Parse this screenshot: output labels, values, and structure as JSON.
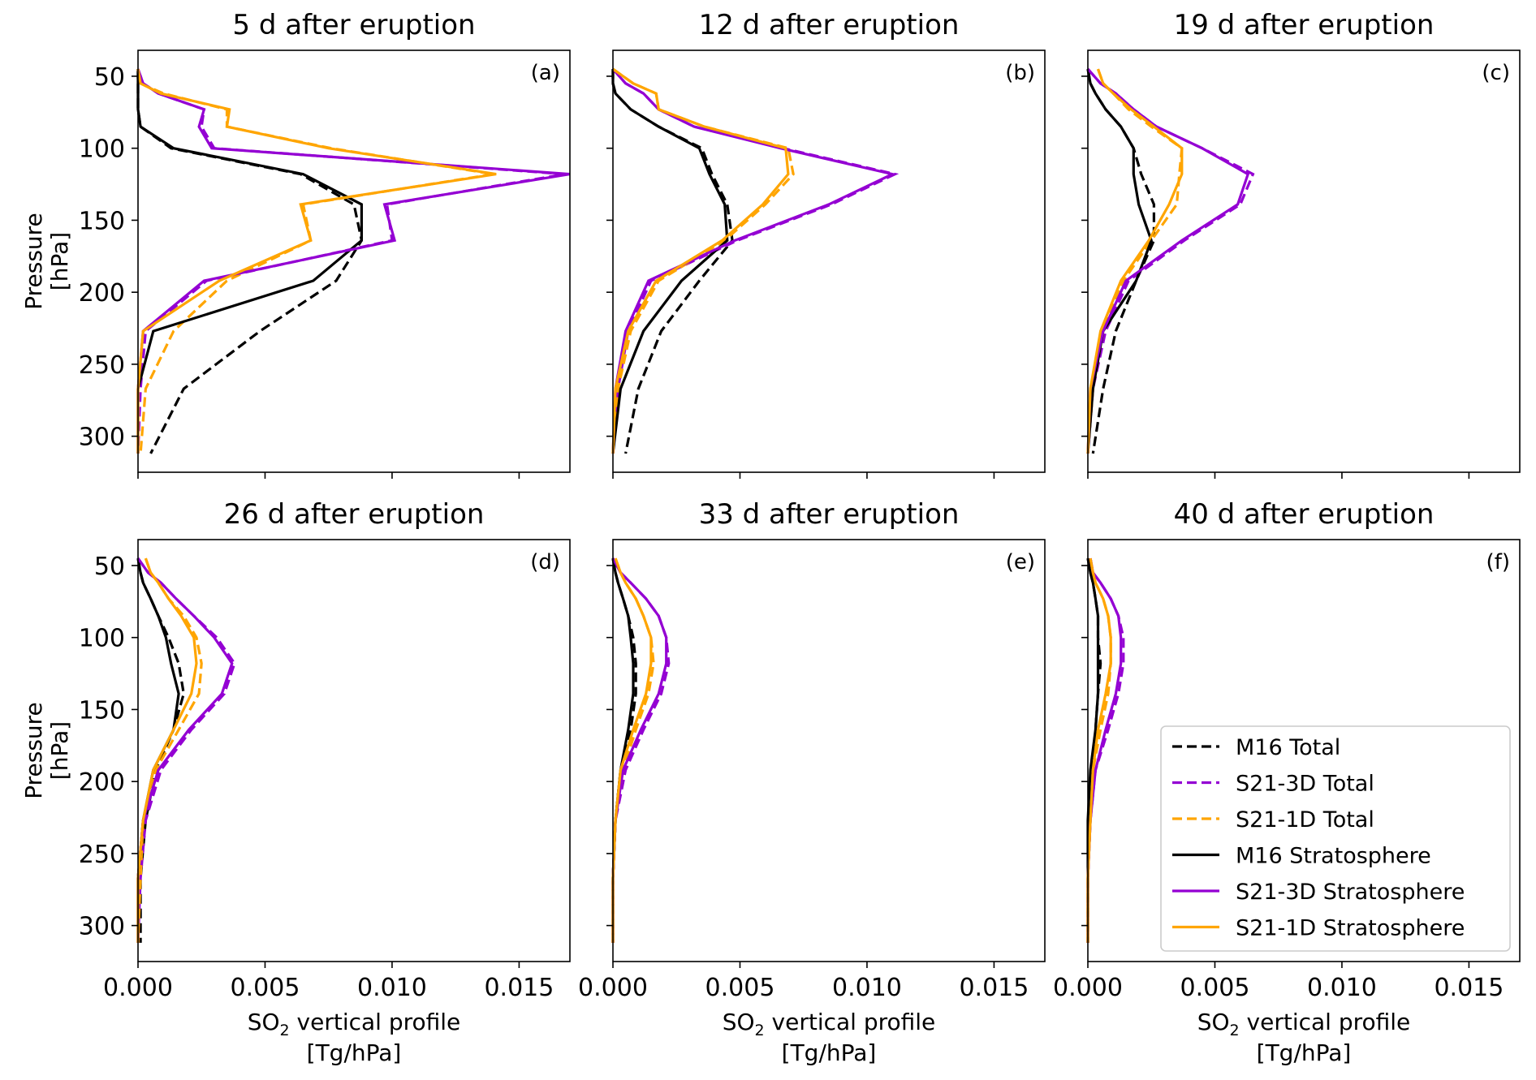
{
  "colors": {
    "M16": "#000000",
    "S21-3D": "#9400d3",
    "S21-1D": "#ffa500"
  },
  "axes_common": {
    "xlim": [
      0,
      0.017
    ],
    "ylim": [
      325,
      32
    ],
    "y_inverted": true,
    "xticks": [
      "0.000",
      "0.005",
      "0.010",
      "0.015"
    ],
    "xtick_values": [
      0,
      0.005,
      0.01,
      0.015
    ],
    "yticks": [
      "50",
      "100",
      "150",
      "200",
      "250",
      "300"
    ],
    "ytick_values": [
      50,
      100,
      150,
      200,
      250,
      300
    ],
    "ylabel_line1": "Pressure",
    "ylabel_line2": "[hPa]",
    "xlabel_pre": "SO",
    "xlabel_sub": "2",
    "xlabel_post": " vertical profile",
    "xlabel_line2": "[Tg/hPa]"
  },
  "legend": {
    "placement": "lower-right of panel (f)",
    "entries": [
      {
        "label": "M16 Total",
        "model": "M16",
        "style": "dashed"
      },
      {
        "label": "S21-3D Total",
        "model": "S21-3D",
        "style": "dashed"
      },
      {
        "label": "S21-1D Total",
        "model": "S21-1D",
        "style": "dashed"
      },
      {
        "label": "M16 Stratosphere",
        "model": "M16",
        "style": "solid"
      },
      {
        "label": "S21-3D Stratosphere",
        "model": "S21-3D",
        "style": "solid"
      },
      {
        "label": "S21-1D Stratosphere",
        "model": "S21-1D",
        "style": "solid"
      }
    ]
  },
  "chart_data": [
    {
      "type": "line",
      "panel": "(a)",
      "title": "5 d  after eruption",
      "pressure": [
        45,
        55,
        62,
        73,
        85,
        100,
        118,
        139,
        164,
        192,
        227,
        267,
        312
      ],
      "series": [
        {
          "model": "M16",
          "style": "dashed",
          "values": [
            0,
            0,
            0,
            0,
            0.0001,
            0.0013,
            0.0064,
            0.0085,
            0.0088,
            0.0078,
            0.0048,
            0.0018,
            0.0005
          ]
        },
        {
          "model": "S21-3D",
          "style": "dashed",
          "values": [
            0,
            0.0002,
            0.0008,
            0.0026,
            0.0025,
            0.003,
            0.0168,
            0.0098,
            0.01,
            0.0027,
            0.0003,
            0.0001,
            0
          ]
        },
        {
          "model": "S21-1D",
          "style": "dashed",
          "values": [
            0,
            0.0001,
            0.001,
            0.0035,
            0.0035,
            0.0076,
            0.014,
            0.0065,
            0.0068,
            0.0035,
            0.0014,
            0.0003,
            0.0001
          ]
        },
        {
          "model": "M16",
          "style": "solid",
          "values": [
            0,
            0,
            0,
            0,
            0.0001,
            0.0014,
            0.0065,
            0.0088,
            0.0088,
            0.0069,
            0.0006,
            0,
            0
          ]
        },
        {
          "model": "S21-3D",
          "style": "solid",
          "values": [
            0,
            0.0002,
            0.0008,
            0.0026,
            0.0024,
            0.0029,
            0.017,
            0.0097,
            0.0101,
            0.0026,
            0.0002,
            0,
            0
          ]
        },
        {
          "model": "S21-1D",
          "style": "solid",
          "values": [
            0,
            0.0001,
            0.0009,
            0.0036,
            0.0035,
            0.0075,
            0.0141,
            0.0064,
            0.0068,
            0.0032,
            0.0002,
            0,
            0
          ]
        }
      ]
    },
    {
      "type": "line",
      "panel": "(b)",
      "title": "12 d  after eruption",
      "pressure": [
        45,
        55,
        62,
        73,
        85,
        100,
        118,
        139,
        164,
        192,
        227,
        267,
        312
      ],
      "series": [
        {
          "model": "M16",
          "style": "dashed",
          "values": [
            0,
            0,
            0.0001,
            0.0007,
            0.0018,
            0.0035,
            0.0039,
            0.0045,
            0.0047,
            0.0034,
            0.0019,
            0.001,
            0.0005
          ]
        },
        {
          "model": "S21-3D",
          "style": "dashed",
          "values": [
            0,
            0.0005,
            0.0012,
            0.0018,
            0.0032,
            0.0067,
            0.0111,
            0.0086,
            0.0049,
            0.0015,
            0.0006,
            0.0002,
            0
          ]
        },
        {
          "model": "S21-1D",
          "style": "dashed",
          "values": [
            0,
            0.0008,
            0.0017,
            0.0018,
            0.0036,
            0.0069,
            0.0071,
            0.006,
            0.0044,
            0.0018,
            0.0007,
            0.0002,
            0
          ]
        },
        {
          "model": "M16",
          "style": "solid",
          "values": [
            0,
            0,
            0.0001,
            0.0007,
            0.0018,
            0.0034,
            0.0038,
            0.0044,
            0.0045,
            0.0027,
            0.0012,
            0.0003,
            0
          ]
        },
        {
          "model": "S21-3D",
          "style": "solid",
          "values": [
            0,
            0.0005,
            0.0012,
            0.0018,
            0.0032,
            0.0066,
            0.011,
            0.0085,
            0.0048,
            0.0014,
            0.0005,
            0.0001,
            0
          ]
        },
        {
          "model": "S21-1D",
          "style": "solid",
          "values": [
            0,
            0.0008,
            0.0017,
            0.0018,
            0.0036,
            0.0068,
            0.0069,
            0.0059,
            0.0043,
            0.0017,
            0.0006,
            0.0001,
            0
          ]
        }
      ]
    },
    {
      "type": "line",
      "panel": "(c)",
      "title": "19 d  after eruption",
      "pressure": [
        45,
        55,
        62,
        73,
        85,
        100,
        118,
        139,
        164,
        192,
        227,
        267,
        312
      ],
      "series": [
        {
          "model": "M16",
          "style": "dashed",
          "values": [
            0,
            0.0001,
            0.0003,
            0.0007,
            0.0013,
            0.0018,
            0.0021,
            0.0026,
            0.0026,
            0.0019,
            0.0011,
            0.0006,
            0.0002
          ]
        },
        {
          "model": "S21-3D",
          "style": "dashed",
          "values": [
            0,
            0.0005,
            0.0011,
            0.0018,
            0.0027,
            0.0045,
            0.0065,
            0.006,
            0.0038,
            0.0016,
            0.0007,
            0.0002,
            0
          ]
        },
        {
          "model": "S21-1D",
          "style": "dashed",
          "values": [
            0.0004,
            0.0006,
            0.001,
            0.0016,
            0.0025,
            0.0037,
            0.0036,
            0.0035,
            0.0025,
            0.0014,
            0.0006,
            0.0002,
            0
          ]
        },
        {
          "model": "M16",
          "style": "solid",
          "values": [
            0,
            0.0001,
            0.0003,
            0.0007,
            0.0013,
            0.0018,
            0.0018,
            0.002,
            0.0025,
            0.0019,
            0.0006,
            0.0002,
            0
          ]
        },
        {
          "model": "S21-3D",
          "style": "solid",
          "values": [
            0,
            0.0005,
            0.0011,
            0.0018,
            0.0027,
            0.0045,
            0.0063,
            0.0059,
            0.0037,
            0.0015,
            0.0006,
            0.0001,
            0
          ]
        },
        {
          "model": "S21-1D",
          "style": "solid",
          "values": [
            0.0004,
            0.0006,
            0.001,
            0.0017,
            0.0026,
            0.0037,
            0.0037,
            0.0032,
            0.0024,
            0.0013,
            0.0005,
            0.0001,
            0
          ]
        }
      ]
    },
    {
      "type": "line",
      "panel": "(d)",
      "title": "26 d  after eruption",
      "pressure": [
        45,
        55,
        62,
        73,
        85,
        100,
        118,
        139,
        164,
        192,
        227,
        267,
        312
      ],
      "series": [
        {
          "model": "M16",
          "style": "dashed",
          "values": [
            0,
            0.0001,
            0.0002,
            0.0005,
            0.0008,
            0.0012,
            0.0016,
            0.0018,
            0.0014,
            0.0007,
            0.0003,
            0.0001,
            0.0001
          ]
        },
        {
          "model": "S21-3D",
          "style": "dashed",
          "values": [
            0,
            0.0004,
            0.0009,
            0.0015,
            0.0022,
            0.0031,
            0.0038,
            0.0034,
            0.0021,
            0.0009,
            0.0003,
            0.0001,
            0
          ]
        },
        {
          "model": "S21-1D",
          "style": "dashed",
          "values": [
            0.0003,
            0.0005,
            0.0008,
            0.0012,
            0.0018,
            0.0023,
            0.0025,
            0.0024,
            0.0016,
            0.0007,
            0.0002,
            0.0001,
            0
          ]
        },
        {
          "model": "M16",
          "style": "solid",
          "values": [
            0,
            0.0001,
            0.0002,
            0.0005,
            0.0008,
            0.0011,
            0.0013,
            0.0016,
            0.0014,
            0.0006,
            0.0002,
            0,
            0
          ]
        },
        {
          "model": "S21-3D",
          "style": "solid",
          "values": [
            0,
            0.0004,
            0.0009,
            0.0015,
            0.0022,
            0.003,
            0.0037,
            0.0033,
            0.002,
            0.0008,
            0.0002,
            0,
            0
          ]
        },
        {
          "model": "S21-1D",
          "style": "solid",
          "values": [
            0.0003,
            0.0005,
            0.0008,
            0.0012,
            0.0017,
            0.0022,
            0.0023,
            0.0021,
            0.0014,
            0.0006,
            0.0002,
            0,
            0
          ]
        }
      ]
    },
    {
      "type": "line",
      "panel": "(e)",
      "title": "33 d  after eruption",
      "pressure": [
        45,
        55,
        62,
        73,
        85,
        100,
        118,
        139,
        164,
        192,
        227,
        267,
        312
      ],
      "series": [
        {
          "model": "M16",
          "style": "dashed",
          "values": [
            0,
            0.0001,
            0.0002,
            0.0004,
            0.0006,
            0.0008,
            0.0009,
            0.0009,
            0.0007,
            0.0003,
            0.0001,
            0,
            0
          ]
        },
        {
          "model": "S21-3D",
          "style": "dashed",
          "values": [
            0,
            0.0003,
            0.0007,
            0.0013,
            0.0018,
            0.0021,
            0.0022,
            0.0019,
            0.0012,
            0.0005,
            0.0001,
            0,
            0
          ]
        },
        {
          "model": "S21-1D",
          "style": "dashed",
          "values": [
            0.0001,
            0.0003,
            0.0005,
            0.0009,
            0.0012,
            0.0015,
            0.0016,
            0.0014,
            0.0009,
            0.0004,
            0.0001,
            0,
            0
          ]
        },
        {
          "model": "M16",
          "style": "solid",
          "values": [
            0,
            0.0001,
            0.0002,
            0.0004,
            0.0006,
            0.0007,
            0.0008,
            0.0008,
            0.0006,
            0.0003,
            0.0001,
            0,
            0
          ]
        },
        {
          "model": "S21-3D",
          "style": "solid",
          "values": [
            0,
            0.0003,
            0.0007,
            0.0013,
            0.0018,
            0.0021,
            0.0021,
            0.0018,
            0.0011,
            0.0004,
            0.0001,
            0,
            0
          ]
        },
        {
          "model": "S21-1D",
          "style": "solid",
          "values": [
            0.0001,
            0.0003,
            0.0005,
            0.0009,
            0.0012,
            0.0015,
            0.0015,
            0.0013,
            0.0008,
            0.0003,
            0.0001,
            0,
            0
          ]
        }
      ]
    },
    {
      "type": "line",
      "panel": "(f)",
      "title": "40 d  after eruption",
      "pressure": [
        45,
        55,
        62,
        73,
        85,
        100,
        118,
        139,
        164,
        192,
        227,
        267,
        312
      ],
      "series": [
        {
          "model": "M16",
          "style": "dashed",
          "values": [
            0,
            0.0001,
            0.0002,
            0.0003,
            0.0004,
            0.0004,
            0.0005,
            0.0004,
            0.0003,
            0.0002,
            0.0001,
            0,
            0
          ]
        },
        {
          "model": "S21-3D",
          "style": "dashed",
          "values": [
            0.0001,
            0.0002,
            0.0005,
            0.0009,
            0.0012,
            0.0014,
            0.0014,
            0.0012,
            0.0008,
            0.0003,
            0.0001,
            0,
            0
          ]
        },
        {
          "model": "S21-1D",
          "style": "dashed",
          "values": [
            0.0001,
            0.0002,
            0.0003,
            0.0006,
            0.0008,
            0.0009,
            0.0009,
            0.0008,
            0.0005,
            0.0002,
            0.0001,
            0,
            0
          ]
        },
        {
          "model": "M16",
          "style": "solid",
          "values": [
            0,
            0.0001,
            0.0002,
            0.0003,
            0.0004,
            0.0004,
            0.0004,
            0.0004,
            0.0003,
            0.0001,
            0,
            0,
            0
          ]
        },
        {
          "model": "S21-3D",
          "style": "solid",
          "values": [
            0.0001,
            0.0002,
            0.0005,
            0.0009,
            0.0012,
            0.0013,
            0.0013,
            0.0011,
            0.0007,
            0.0003,
            0.0001,
            0,
            0
          ]
        },
        {
          "model": "S21-1D",
          "style": "solid",
          "values": [
            0.0001,
            0.0002,
            0.0003,
            0.0006,
            0.0008,
            0.0009,
            0.0009,
            0.0007,
            0.0004,
            0.0002,
            0.0001,
            0,
            0
          ]
        }
      ]
    }
  ]
}
